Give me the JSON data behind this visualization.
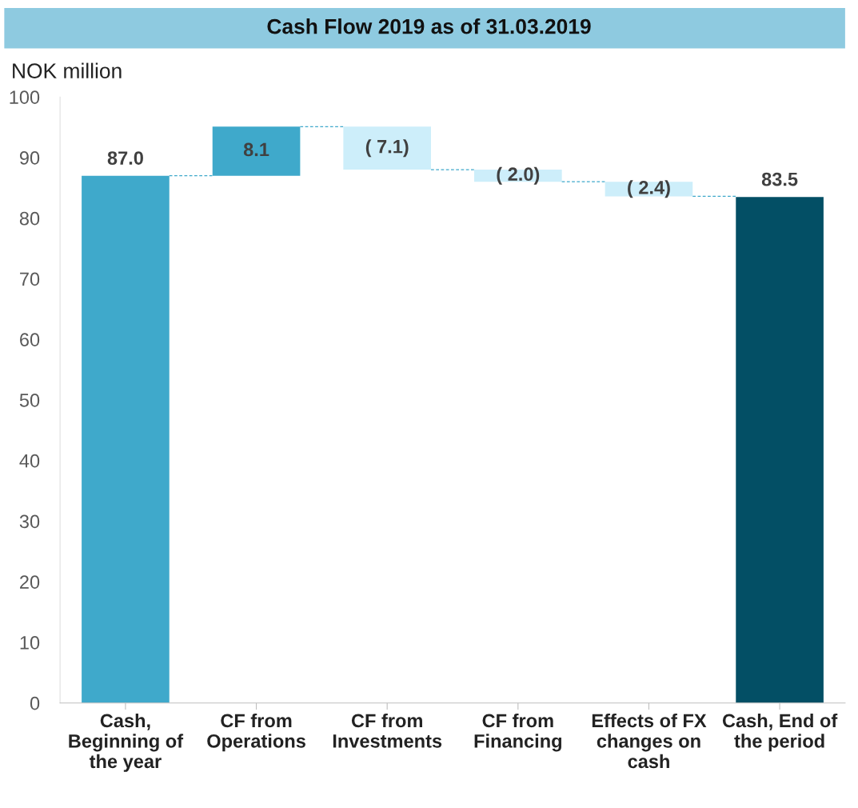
{
  "chart_data": {
    "type": "bar",
    "title": "Cash Flow 2019 as of 31.03.2019",
    "ylabel": "NOK million",
    "categories": [
      "Cash,\nBeginning of\nthe year",
      "CF from\nOperations",
      "CF from\nInvestments",
      "CF from\nFinancing",
      "Effects of FX\nchanges on\ncash",
      "Cash, End of\nthe period"
    ],
    "values": [
      87.0,
      8.1,
      -7.1,
      -2.0,
      -2.4,
      83.5
    ],
    "base": [
      0,
      87.0,
      95.1,
      88.0,
      86.0,
      0
    ],
    "colors": [
      "#3fa9cb",
      "#3fa9cb",
      "#cdeefa",
      "#cdeefa",
      "#cdeefa",
      "#034f65"
    ],
    "value_labels": [
      "87.0",
      "8.1",
      "( 7.1)",
      "( 2.0)",
      "( 2.4)",
      "83.5"
    ],
    "ylim": [
      0,
      100
    ],
    "yticks": [
      0,
      10,
      20,
      30,
      40,
      50,
      60,
      70,
      80,
      90,
      100
    ],
    "grid": false,
    "legend": false
  }
}
